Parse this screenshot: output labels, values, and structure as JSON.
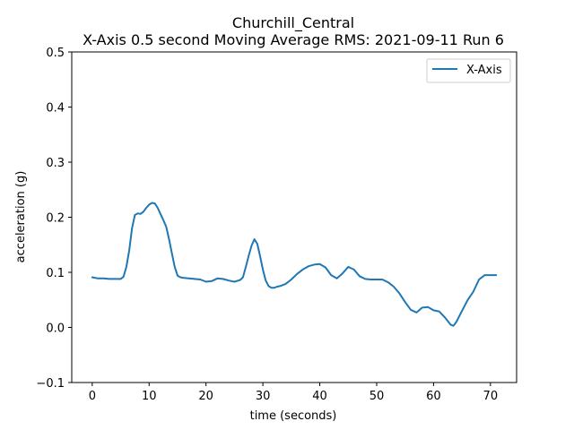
{
  "chart_data": {
    "type": "line",
    "title": "Churchill_Central",
    "subtitle": "X-Axis 0.5 second Moving Average RMS: 2021-09-11 Run 6",
    "xlabel": "time (seconds)",
    "ylabel": "acceleration (g)",
    "xlim": [
      -3.6,
      74.6
    ],
    "ylim": [
      -0.1,
      0.5
    ],
    "xticks": [
      0,
      10,
      20,
      30,
      40,
      50,
      60,
      70
    ],
    "yticks": [
      -0.1,
      0.0,
      0.1,
      0.2,
      0.3,
      0.4,
      0.5
    ],
    "xtick_labels": [
      "0",
      "10",
      "20",
      "30",
      "40",
      "50",
      "60",
      "70"
    ],
    "ytick_labels": [
      "−0.1",
      "0.0",
      "0.1",
      "0.2",
      "0.3",
      "0.4",
      "0.5"
    ],
    "grid": false,
    "legend": "top-right",
    "colors": {
      "series": "#1f77b4"
    },
    "series": [
      {
        "name": "X-Axis",
        "x": [
          0,
          1,
          2,
          3,
          4,
          5,
          5.5,
          6,
          6.5,
          7,
          7.5,
          8,
          8.5,
          9,
          9.5,
          10,
          10.5,
          11,
          11.5,
          12,
          12.5,
          13,
          13.5,
          14,
          14.5,
          15,
          15.5,
          16,
          17,
          18,
          19,
          20,
          21,
          22,
          23,
          24,
          25,
          26,
          26.5,
          27,
          27.5,
          28,
          28.5,
          29,
          29.5,
          30,
          30.5,
          31,
          31.5,
          32,
          32.5,
          33,
          34,
          35,
          36,
          37,
          38,
          39,
          40,
          41,
          42,
          43,
          44,
          45,
          46,
          47,
          48,
          49,
          50,
          51,
          52,
          53,
          54,
          55,
          56,
          57,
          58,
          59,
          60,
          61,
          62,
          63,
          63.5,
          64,
          65,
          66,
          67,
          68,
          69,
          70,
          71
        ],
        "values": [
          0.091,
          0.089,
          0.089,
          0.088,
          0.088,
          0.088,
          0.092,
          0.11,
          0.14,
          0.18,
          0.204,
          0.207,
          0.206,
          0.21,
          0.217,
          0.223,
          0.226,
          0.225,
          0.217,
          0.206,
          0.195,
          0.183,
          0.16,
          0.135,
          0.11,
          0.094,
          0.091,
          0.09,
          0.089,
          0.088,
          0.087,
          0.083,
          0.084,
          0.089,
          0.088,
          0.085,
          0.083,
          0.086,
          0.091,
          0.11,
          0.13,
          0.148,
          0.16,
          0.152,
          0.13,
          0.105,
          0.085,
          0.075,
          0.072,
          0.072,
          0.074,
          0.075,
          0.079,
          0.087,
          0.097,
          0.105,
          0.111,
          0.114,
          0.115,
          0.109,
          0.095,
          0.089,
          0.098,
          0.11,
          0.105,
          0.093,
          0.088,
          0.087,
          0.087,
          0.087,
          0.082,
          0.074,
          0.062,
          0.046,
          0.032,
          0.027,
          0.036,
          0.037,
          0.031,
          0.029,
          0.018,
          0.005,
          0.003,
          0.01,
          0.03,
          0.05,
          0.065,
          0.087,
          0.095,
          0.095,
          0.095
        ]
      }
    ]
  }
}
